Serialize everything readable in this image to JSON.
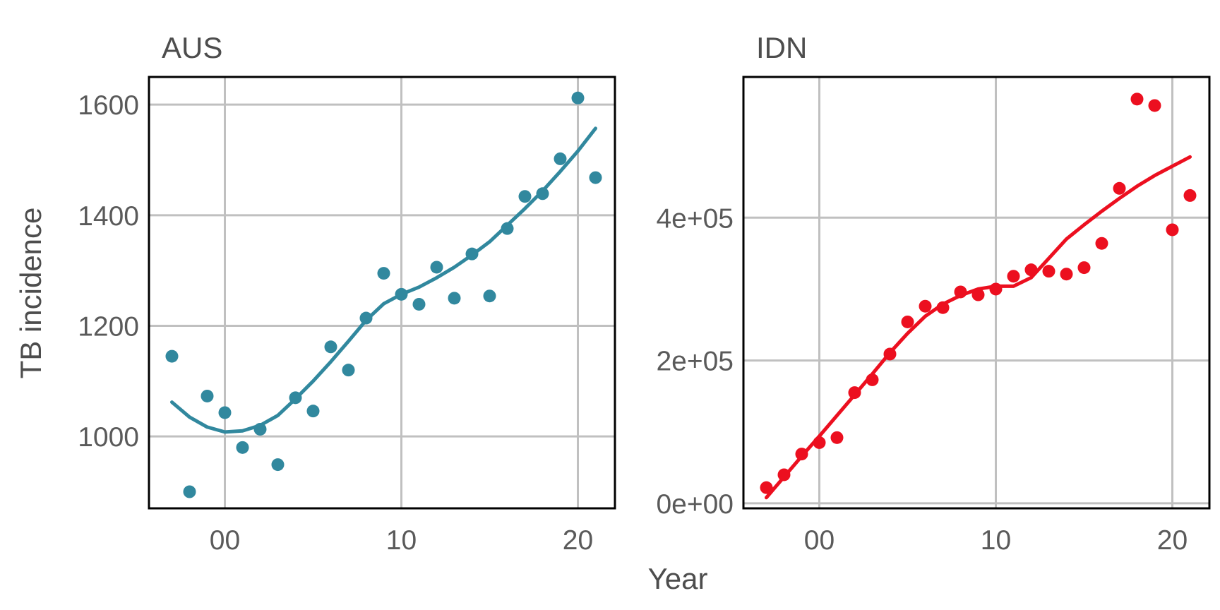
{
  "chart_data": {
    "type": "scatter",
    "xlabel": "Year",
    "ylabel": "TB incidence",
    "grid": true,
    "panels": [
      {
        "title": "AUS",
        "color": "#31889e",
        "xlim": [
          -4.3,
          22.1
        ],
        "ylim": [
          870,
          1650
        ],
        "x_ticks": [
          {
            "value": 0,
            "label": "00"
          },
          {
            "value": 10,
            "label": "10"
          },
          {
            "value": 20,
            "label": "20"
          }
        ],
        "y_ticks": [
          {
            "value": 1000,
            "label": "1000"
          },
          {
            "value": 1200,
            "label": "1200"
          },
          {
            "value": 1400,
            "label": "1400"
          },
          {
            "value": 1600,
            "label": "1600"
          }
        ],
        "points": {
          "x": [
            -3,
            -2,
            -1,
            0,
            1,
            2,
            3,
            4,
            5,
            6,
            7,
            8,
            9,
            10,
            11,
            12,
            13,
            14,
            15,
            16,
            17,
            18,
            19,
            20,
            21
          ],
          "y": [
            1145,
            900,
            1073,
            1043,
            980,
            1013,
            949,
            1070,
            1046,
            1162,
            1120,
            1214,
            1295,
            1257,
            1239,
            1306,
            1250,
            1330,
            1254,
            1376,
            1434,
            1439,
            1502,
            1612,
            1468
          ]
        },
        "smooth": {
          "x": [
            -3,
            -2,
            -1,
            0,
            1,
            2,
            3,
            4,
            5,
            6,
            7,
            8,
            9,
            10,
            11,
            12,
            13,
            14,
            15,
            16,
            17,
            18,
            19,
            20,
            21
          ],
          "y": [
            1062,
            1035,
            1017,
            1008,
            1010,
            1020,
            1038,
            1068,
            1100,
            1135,
            1172,
            1210,
            1240,
            1257,
            1270,
            1287,
            1306,
            1328,
            1352,
            1382,
            1412,
            1444,
            1479,
            1516,
            1557
          ]
        }
      },
      {
        "title": "IDN",
        "color": "#ec0f1f",
        "xlim": [
          -4.3,
          22.1
        ],
        "ylim": [
          -7000,
          597000
        ],
        "x_ticks": [
          {
            "value": 0,
            "label": "00"
          },
          {
            "value": 10,
            "label": "10"
          },
          {
            "value": 20,
            "label": "20"
          }
        ],
        "y_ticks": [
          {
            "value": 0,
            "label": "0e+00"
          },
          {
            "value": 200000,
            "label": "2e+05"
          },
          {
            "value": 400000,
            "label": "4e+05"
          }
        ],
        "points": {
          "x": [
            -3,
            -2,
            -1,
            0,
            1,
            2,
            3,
            4,
            5,
            6,
            7,
            8,
            9,
            10,
            11,
            12,
            13,
            14,
            15,
            16,
            17,
            18,
            19,
            20,
            21
          ],
          "y": [
            22000,
            40000,
            69000,
            85000,
            92000,
            155000,
            173000,
            209000,
            254000,
            276000,
            274000,
            296000,
            292000,
            300000,
            318000,
            327000,
            325000,
            321000,
            330000,
            364000,
            441000,
            566000,
            557000,
            383000,
            431000
          ]
        },
        "smooth": {
          "x": [
            -3,
            -2,
            -1,
            0,
            1,
            2,
            3,
            4,
            5,
            6,
            7,
            8,
            9,
            10,
            11,
            12,
            13,
            14,
            15,
            16,
            17,
            18,
            19,
            20,
            21
          ],
          "y": [
            8000,
            37000,
            66000,
            94000,
            123000,
            152000,
            181000,
            211000,
            238000,
            262000,
            279000,
            291000,
            300000,
            304000,
            304000,
            316000,
            343000,
            370000,
            390000,
            409000,
            427000,
            444000,
            459000,
            472000,
            485000
          ]
        }
      }
    ]
  }
}
